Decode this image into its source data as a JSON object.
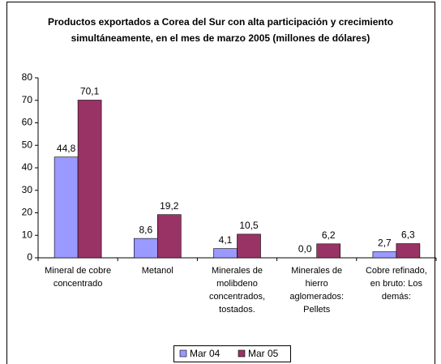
{
  "chart_data": {
    "type": "bar",
    "title": "Productos exportados a Corea del Sur con alta participación y crecimiento simultáneamente, en el mes de marzo 2005 (millones de dólares)",
    "categories": [
      "Mineral de cobre concentrado",
      "Metanol",
      "Minerales de molibdeno concentrados, tostados.",
      "Minerales de hierro aglomerados: Pellets",
      "Cobre refinado, en bruto: Los demás:"
    ],
    "series": [
      {
        "name": "Mar 04",
        "color": "#9999ff",
        "values": [
          44.8,
          8.6,
          4.1,
          0.0,
          2.7
        ],
        "value_labels": [
          "44,8",
          "8,6",
          "4,1",
          "0,0",
          "2,7"
        ]
      },
      {
        "name": "Mar 05",
        "color": "#993366",
        "values": [
          70.1,
          19.2,
          10.5,
          6.2,
          6.3
        ],
        "value_labels": [
          "70,1",
          "19,2",
          "10,5",
          "6,2",
          "6,3"
        ]
      }
    ],
    "ylim": [
      0,
      80
    ],
    "yticks": [
      0,
      10,
      20,
      30,
      40,
      50,
      60,
      70,
      80
    ],
    "legend": "bottom"
  }
}
